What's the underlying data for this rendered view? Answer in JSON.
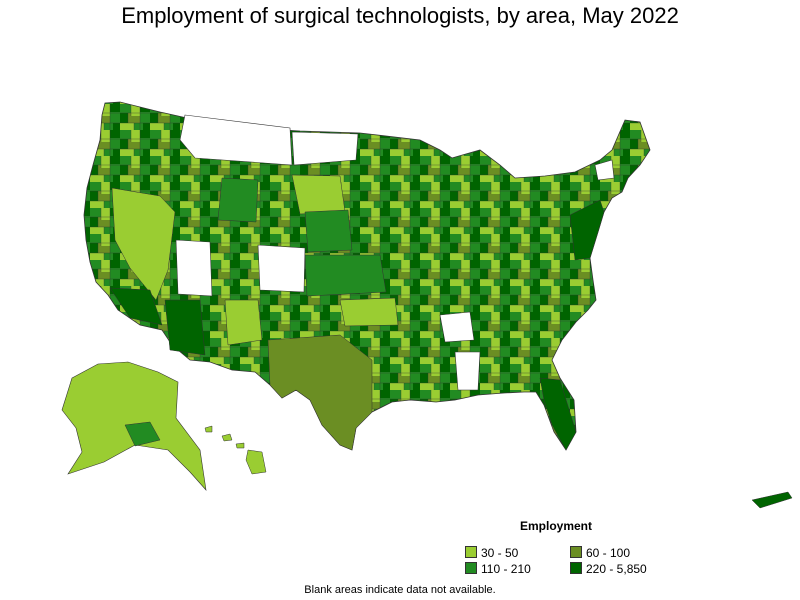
{
  "title": "Employment of surgical technologists, by area, May 2022",
  "legend": {
    "title": "Employment",
    "items": [
      {
        "label": "30 - 50",
        "color": "#9acd32"
      },
      {
        "label": "60 - 100",
        "color": "#6b8e23"
      },
      {
        "label": "110 - 210",
        "color": "#228b22"
      },
      {
        "label": "220 - 5,850",
        "color": "#006400"
      }
    ]
  },
  "no_data_color": "#ffffff",
  "footnote": "Blank areas indicate data not available."
}
